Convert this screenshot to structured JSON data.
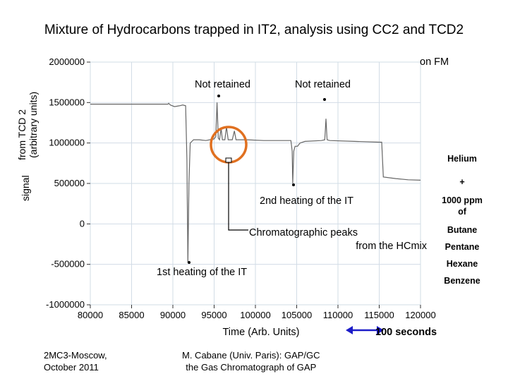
{
  "title": "Mixture of Hydrocarbons trapped in IT2, analysis using CC2 and TCD2",
  "corner_label": "on FM",
  "chart_data": {
    "type": "line",
    "xlabel": "Time (Arb. Units)",
    "ylabel_main": "signal",
    "ylabel_sub": "from TCD 2",
    "ylabel_unit": "(arbitrary units)",
    "xlim": [
      80000,
      120000
    ],
    "ylim": [
      -1000000,
      2000000
    ],
    "x_ticks": [
      80000,
      85000,
      90000,
      95000,
      100000,
      105000,
      110000,
      115000,
      120000
    ],
    "x_tick_labels": [
      "80000",
      "85000",
      "90000",
      "95000",
      "100000",
      "105000",
      "110000",
      "115000",
      "120000"
    ],
    "y_ticks": [
      -1000000,
      -500000,
      0,
      500000,
      1000000,
      1500000,
      2000000
    ],
    "y_tick_labels": [
      "-1000000",
      "-500000",
      "0",
      "500000",
      "1000000",
      "1500000",
      "2000000"
    ],
    "grid": true,
    "series": [
      {
        "color": "#666666",
        "points": [
          [
            80000,
            1480000
          ],
          [
            89400,
            1480000
          ],
          [
            89500,
            1490000
          ],
          [
            89700,
            1470000
          ],
          [
            90200,
            1450000
          ],
          [
            90800,
            1460000
          ],
          [
            91200,
            1470000
          ],
          [
            91550,
            1460000
          ],
          [
            91700,
            800000
          ],
          [
            91820,
            -480000
          ],
          [
            91950,
            500000
          ],
          [
            92100,
            1000000
          ],
          [
            92500,
            1040000
          ],
          [
            93200,
            1040000
          ],
          [
            94000,
            1030000
          ],
          [
            95000,
            1050000
          ],
          [
            95200,
            1080000
          ],
          [
            95350,
            1500000
          ],
          [
            95500,
            1060000
          ],
          [
            95650,
            1040000
          ],
          [
            95850,
            1180000
          ],
          [
            96000,
            1040000
          ],
          [
            96300,
            1040000
          ],
          [
            96500,
            1200000
          ],
          [
            96700,
            1040000
          ],
          [
            97200,
            1040000
          ],
          [
            97450,
            1150000
          ],
          [
            97650,
            1040000
          ],
          [
            99000,
            1040000
          ],
          [
            101000,
            1030000
          ],
          [
            103000,
            1030000
          ],
          [
            104300,
            1030000
          ],
          [
            104450,
            900000
          ],
          [
            104520,
            500000
          ],
          [
            104650,
            900000
          ],
          [
            104800,
            960000
          ],
          [
            105100,
            960000
          ],
          [
            105400,
            1000000
          ],
          [
            106000,
            1020000
          ],
          [
            108000,
            1030000
          ],
          [
            108400,
            1040000
          ],
          [
            108550,
            1300000
          ],
          [
            108680,
            1040000
          ],
          [
            109000,
            1030000
          ],
          [
            112000,
            1020000
          ],
          [
            115000,
            1010000
          ],
          [
            115300,
            1010000
          ],
          [
            115500,
            580000
          ],
          [
            117000,
            560000
          ],
          [
            118500,
            545000
          ],
          [
            120000,
            540000
          ]
        ]
      }
    ],
    "annotations": {
      "not_retained_1": "Not retained",
      "not_retained_2": "Not retained",
      "heating_2": "2nd heating of the IT",
      "heating_1": "1st heating of the IT",
      "peaks_line1": "Chromatographic peaks",
      "peaks_line2": "from the HCmix"
    }
  },
  "legend_side": {
    "helium": "Helium",
    "plus": "+",
    "ppm_line1": "1000 ppm",
    "ppm_line2": "of",
    "butane": "Butane",
    "pentane": "Pentane",
    "hexane": "Hexane",
    "benzene": "Benzene"
  },
  "scale_label": "100 seconds",
  "accent_arrow_color": "#1c1cc8",
  "highlight_color": "#e07020",
  "footer": {
    "left_line1": "2MC3-Moscow,",
    "left_line2": "October 2011",
    "mid_line1": "M. Cabane (Univ. Paris): GAP/GC",
    "mid_line2": "the Gas Chromatograph of GAP"
  }
}
